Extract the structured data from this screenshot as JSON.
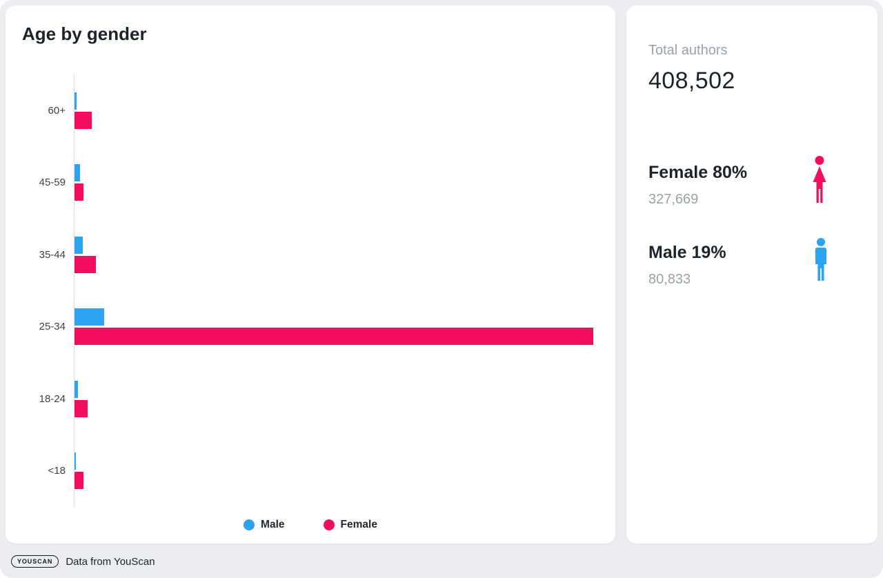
{
  "chart_card": {
    "title": "Age by gender"
  },
  "chart_data": {
    "type": "bar",
    "orientation": "horizontal",
    "title": "Age by gender",
    "xlabel": "",
    "ylabel": "",
    "grid": false,
    "legend_position": "bottom",
    "categories": [
      "60+",
      "45-59",
      "35-44",
      "25-34",
      "18-24",
      "<18"
    ],
    "series": [
      {
        "name": "Male",
        "color": "#2ba3f1",
        "values": [
          1100,
          3100,
          4600,
          16600,
          1900,
          800
        ]
      },
      {
        "name": "Female",
        "color": "#f30d5e",
        "values": [
          9700,
          5100,
          12000,
          289100,
          7400,
          5100
        ]
      }
    ]
  },
  "stats_card": {
    "total_label": "Total authors",
    "total_value": "408,502",
    "female": {
      "label": "Female 80%",
      "count": "327,669"
    },
    "male": {
      "label": "Male 19%",
      "count": "80,833"
    }
  },
  "footer": {
    "logo": "YOUSCAN",
    "text": "Data from YouScan"
  },
  "colors": {
    "male": "#2ba3f1",
    "female": "#f30d5e",
    "background": "#ebedf0",
    "card": "#ffffff",
    "muted_text": "#9aa1ab",
    "dark_text": "#1d232c"
  }
}
